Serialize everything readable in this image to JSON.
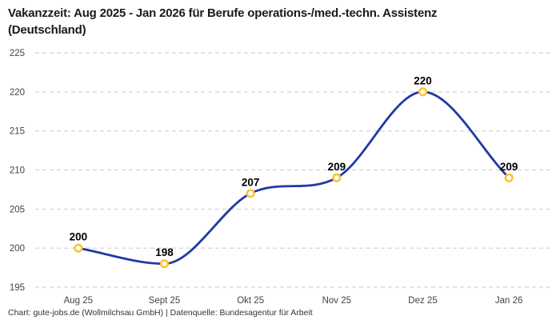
{
  "header": {
    "title_line1": "Vakanzzeit: Aug 2025 - Jan 2026 für Berufe operations-/med.-techn. Assistenz",
    "title_line2": "(Deutschland)"
  },
  "footer": {
    "text": "Chart: gute-jobs.de (Wollmilchsau GmbH) | Datenquelle: Bundesagentur für Arbeit"
  },
  "chart_data": {
    "type": "line",
    "title": "Vakanzzeit: Aug 2025 - Jan 2026 für Berufe operations-/med.-techn. Assistenz (Deutschland)",
    "categories": [
      "Aug 25",
      "Sept 25",
      "Okt 25",
      "Nov 25",
      "Dez 25",
      "Jan 26"
    ],
    "values": [
      200,
      198,
      207,
      209,
      220,
      209
    ],
    "point_labels": [
      "200",
      "198",
      "207",
      "209",
      "220",
      "209"
    ],
    "ylim": [
      195,
      225
    ],
    "ytick_step": 5,
    "ytick_labels": [
      "195",
      "200",
      "205",
      "210",
      "215",
      "220",
      "225"
    ],
    "grid": "horizontal-dashed",
    "legend": "none",
    "curve": "monotone",
    "colors": {
      "line": "#2239A4",
      "marker_ring": "#FCC434",
      "marker_fill": "#ffffff",
      "gridline": "#cbcbcb",
      "tick_text": "#444444",
      "point_label_text": "#000000",
      "background": "#ffffff"
    }
  }
}
